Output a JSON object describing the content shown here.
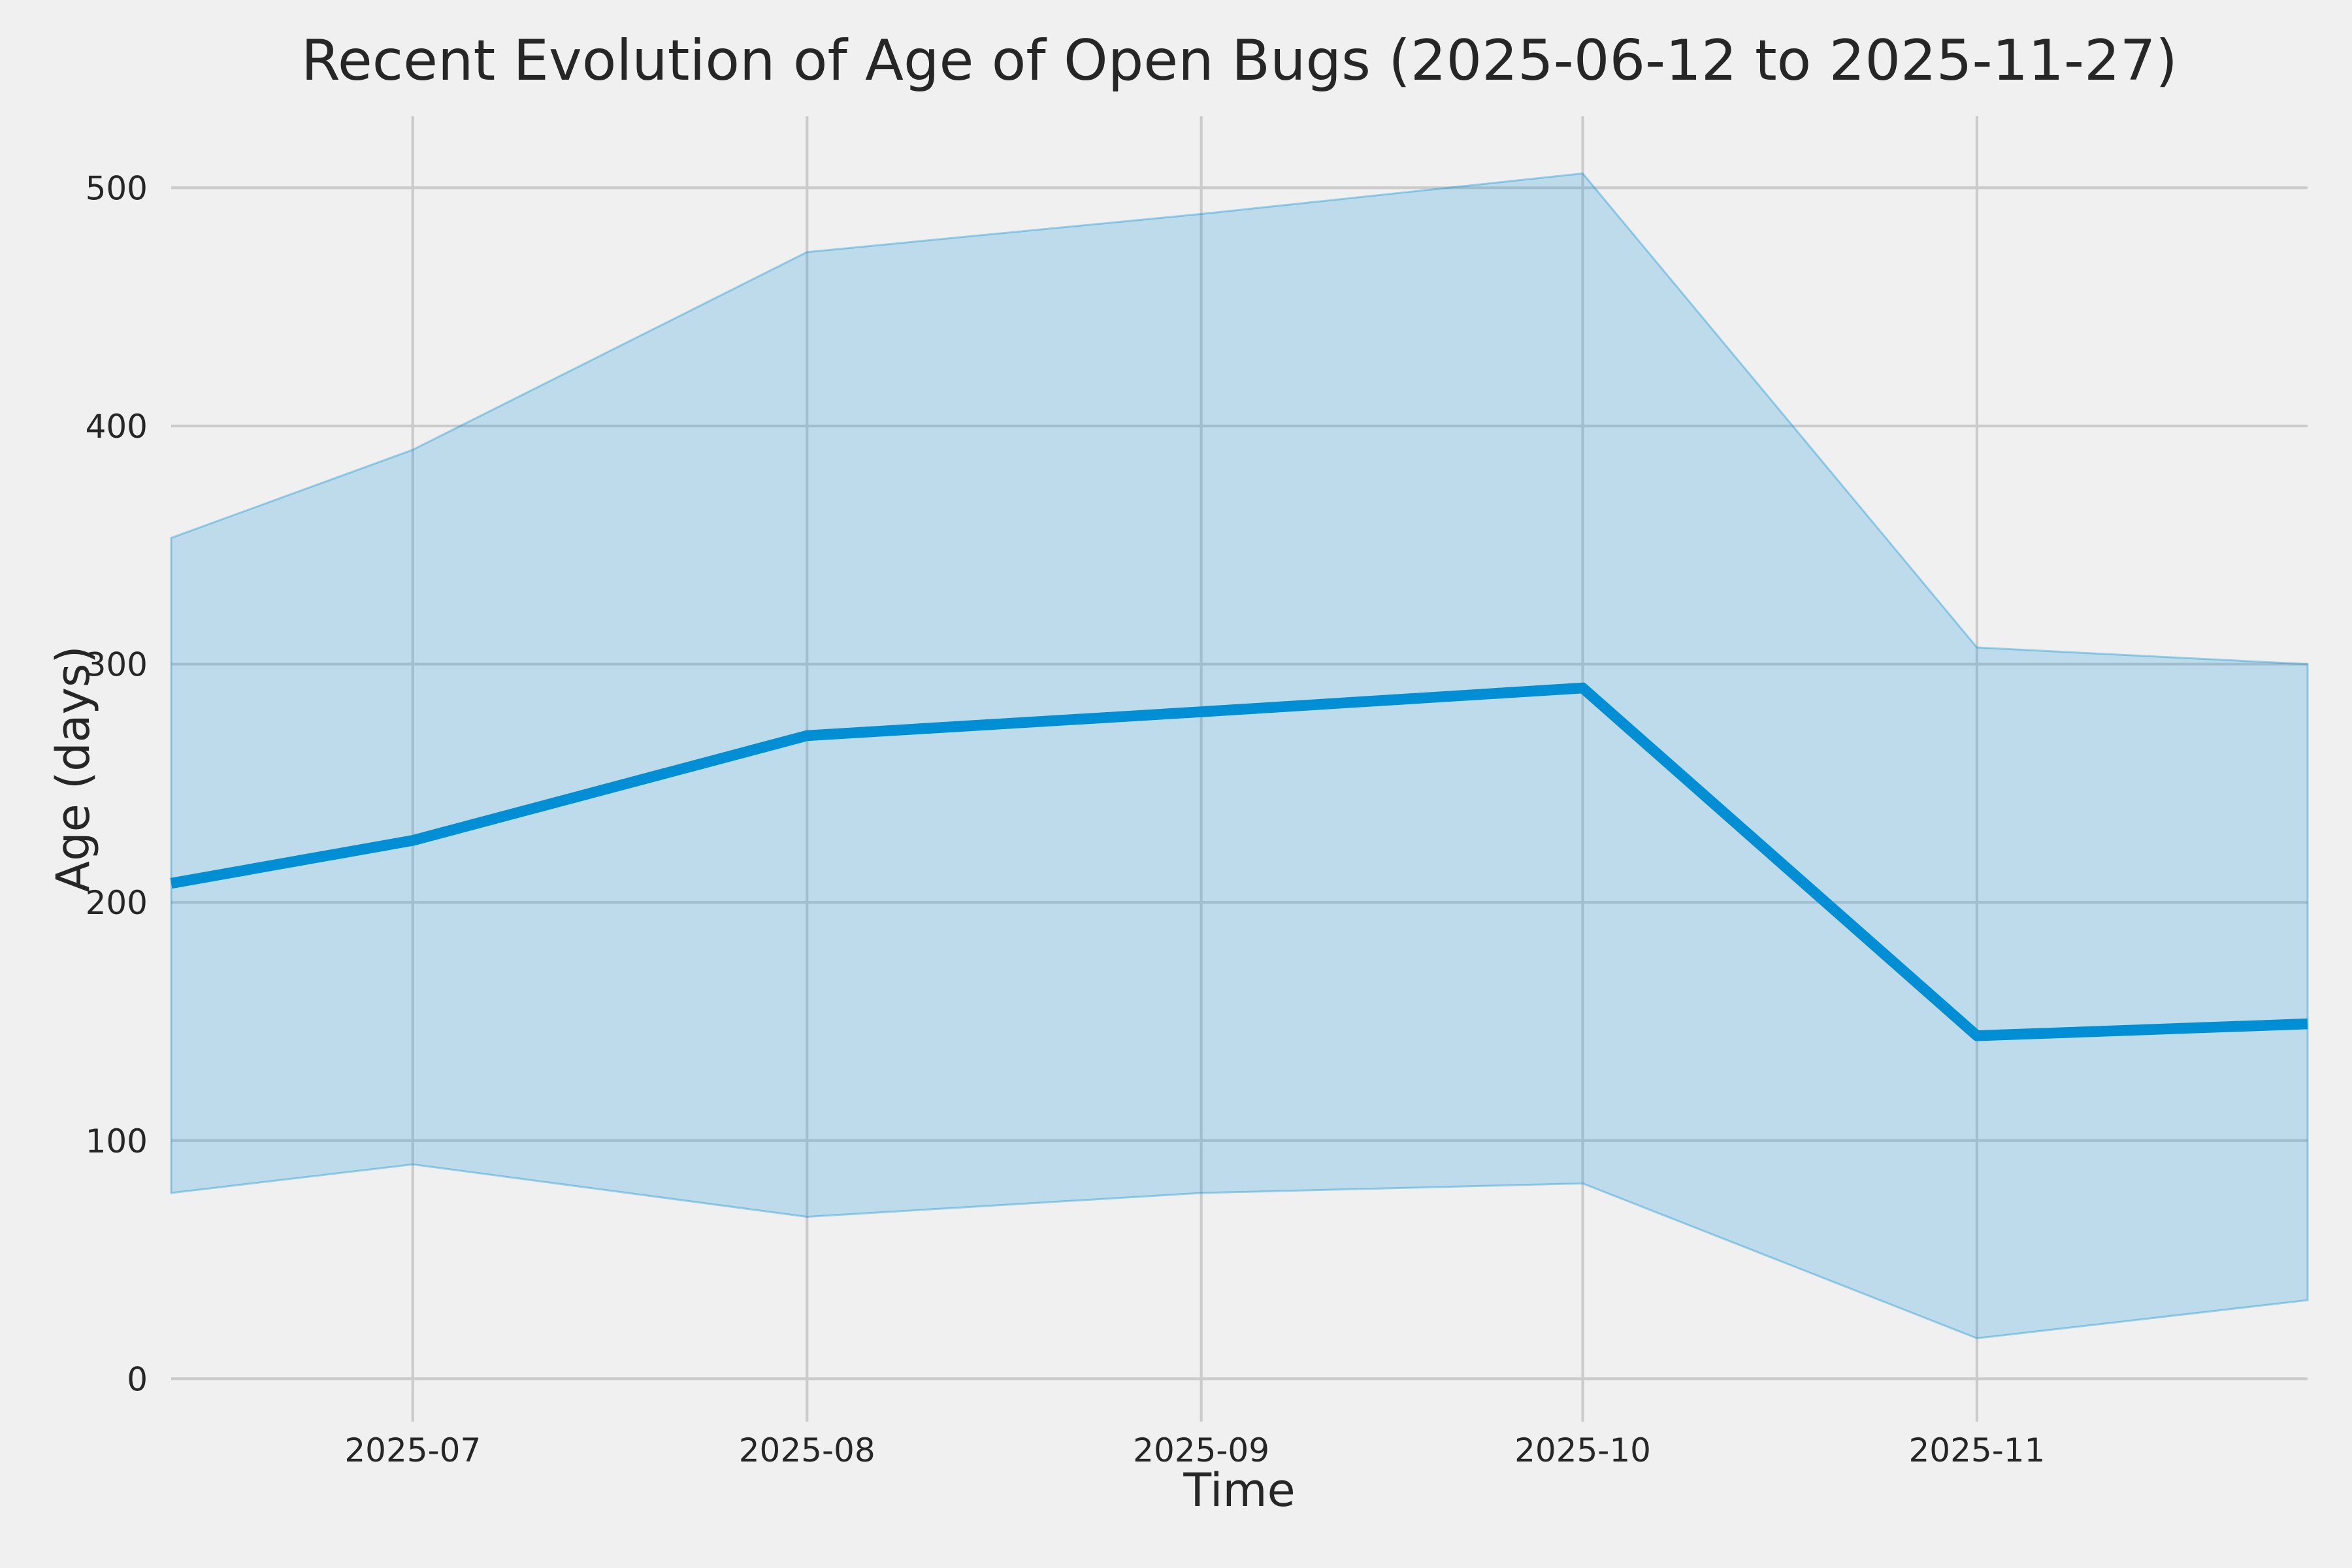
{
  "chart_data": {
    "type": "line",
    "title": "Recent Evolution of Age of Open Bugs (2025-06-12 to 2025-11-27)",
    "xlabel": "Time",
    "ylabel": "Age (days)",
    "date_start": "2025-06-12",
    "date_end": "2025-11-27",
    "x": [
      "2025-06-12",
      "2025-07-01",
      "2025-08-01",
      "2025-09-01",
      "2025-10-01",
      "2025-11-01",
      "2025-11-27"
    ],
    "x_days": [
      0,
      19,
      50,
      81,
      111,
      142,
      168
    ],
    "line": {
      "values": [
        208,
        226,
        270,
        280,
        290,
        144,
        149
      ]
    },
    "band": {
      "upper": [
        353,
        390,
        473,
        489,
        506,
        307,
        300
      ],
      "lower": [
        78,
        90,
        68,
        78,
        82,
        17,
        33
      ]
    },
    "xticks": {
      "labels": [
        "2025-07",
        "2025-08",
        "2025-09",
        "2025-10",
        "2025-11"
      ],
      "days": [
        19,
        50,
        81,
        111,
        142
      ]
    },
    "yticks": [
      0,
      100,
      200,
      300,
      400,
      500
    ],
    "ylim": [
      -18,
      530
    ],
    "xlim_days": [
      0,
      168
    ],
    "grid": true,
    "legend": "none",
    "colors": {
      "line": "#008fd5",
      "band_fill": "#008fd5",
      "band_fill_opacity": 0.21,
      "band_edge_opacity": 0.35,
      "background": "#f0f0f0",
      "grid": "#cbcbcb",
      "text": "#262626"
    }
  }
}
